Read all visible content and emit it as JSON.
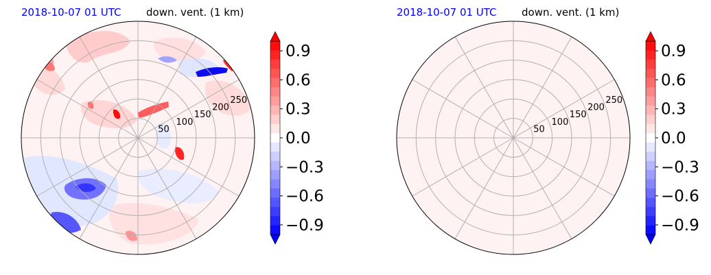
{
  "chart_data": [
    {
      "type": "heatmap",
      "projection": "polar",
      "title_time": "2018-10-07 01 UTC",
      "title_variable": "down. vent. (1 km)",
      "range_rings": [
        50,
        100,
        150,
        200,
        250
      ],
      "radial_lines": 12,
      "field": "variable",
      "colorbar": {
        "colormap": "bwr",
        "min": -1.0,
        "max": 1.0,
        "levels": 21,
        "extend": "both",
        "ticks": [
          0.9,
          0.6,
          0.3,
          0.0,
          -0.3,
          -0.6,
          -0.9
        ],
        "tick_labels": [
          "0.9",
          "0.6",
          "0.3",
          "0.0",
          "−0.3",
          "−0.6",
          "−0.9"
        ]
      }
    },
    {
      "type": "heatmap",
      "projection": "polar",
      "title_time": "2018-10-07 01 UTC",
      "title_variable": "down. vent. (1 km)",
      "range_rings": [
        50,
        100,
        150,
        200,
        250
      ],
      "radial_lines": 12,
      "field": "uniform",
      "uniform_value": 0.05,
      "colorbar": {
        "colormap": "bwr",
        "min": -1.0,
        "max": 1.0,
        "levels": 21,
        "extend": "both",
        "ticks": [
          0.9,
          0.6,
          0.3,
          0.0,
          -0.3,
          -0.6,
          -0.9
        ],
        "tick_labels": [
          "0.9",
          "0.6",
          "0.3",
          "0.0",
          "−0.3",
          "−0.6",
          "−0.9"
        ]
      }
    }
  ]
}
